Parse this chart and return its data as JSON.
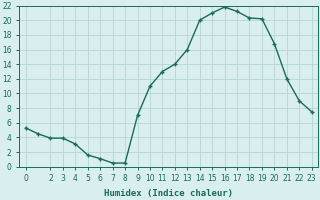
{
  "x": [
    0,
    1,
    2,
    3,
    4,
    5,
    6,
    7,
    8,
    9,
    10,
    11,
    12,
    13,
    14,
    15,
    16,
    17,
    18,
    19,
    20,
    21,
    22,
    23
  ],
  "y": [
    5.3,
    4.5,
    3.9,
    3.9,
    3.1,
    1.6,
    1.1,
    0.5,
    0.5,
    7.0,
    11.0,
    13.0,
    14.0,
    16.0,
    20.0,
    21.0,
    21.8,
    21.2,
    20.3,
    20.2,
    16.8,
    12.0,
    9.0,
    7.5
  ],
  "line_color": "#1a6b5a",
  "marker": "+",
  "marker_size": 3,
  "background_color": "#d9eeee",
  "grid_color": "#b8d4d4",
  "xlabel": "Humidex (Indice chaleur)",
  "xlim": [
    -0.5,
    23.5
  ],
  "ylim": [
    0,
    22
  ],
  "yticks": [
    0,
    2,
    4,
    6,
    8,
    10,
    12,
    14,
    16,
    18,
    20,
    22
  ],
  "xticks": [
    0,
    2,
    3,
    4,
    5,
    6,
    7,
    8,
    9,
    10,
    11,
    12,
    13,
    14,
    15,
    16,
    17,
    18,
    19,
    20,
    21,
    22,
    23
  ],
  "xtick_labels": [
    "0",
    "2",
    "3",
    "4",
    "5",
    "6",
    "7",
    "8",
    "9",
    "10",
    "11",
    "12",
    "13",
    "14",
    "15",
    "16",
    "17",
    "18",
    "19",
    "20",
    "21",
    "22",
    "23"
  ],
  "tick_fontsize": 5.5,
  "xlabel_fontsize": 6.5,
  "linewidth": 1.0,
  "fig_bg_color": "#d9eeee"
}
